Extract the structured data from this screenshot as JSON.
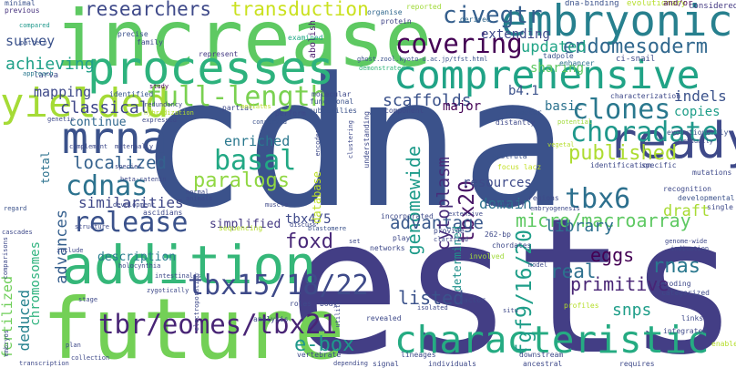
{
  "words": [
    {
      "text": "cdna",
      "color": "#3b528b"
    },
    {
      "text": "ests",
      "color": "#433e85"
    },
    {
      "text": "increase",
      "color": "#5ec962"
    },
    {
      "text": "future",
      "color": "#73d056"
    },
    {
      "text": "addition",
      "color": "#35b779"
    },
    {
      "text": "processes",
      "color": "#2db27d"
    },
    {
      "text": "comprehensive",
      "color": "#20a386"
    },
    {
      "text": "characteristic",
      "color": "#25ab82"
    },
    {
      "text": "embryonic",
      "color": "#27808e"
    },
    {
      "text": "ready",
      "color": "#3e4989"
    },
    {
      "text": "yielded",
      "color": "#a5db36"
    },
    {
      "text": "mrna",
      "color": "#3b528b"
    },
    {
      "text": "choradate",
      "color": "#1f988b"
    },
    {
      "text": "full-length",
      "color": "#7ad151"
    },
    {
      "text": "tbr/eomes/tbx21",
      "color": "#482475"
    },
    {
      "text": "tbx15/18/22",
      "color": "#3e4a89"
    },
    {
      "text": "basal",
      "color": "#22a884"
    },
    {
      "text": "cdnas",
      "color": "#2c728e"
    },
    {
      "text": "release",
      "color": "#3b528b"
    },
    {
      "text": "covering",
      "color": "#440154"
    },
    {
      "text": "clones",
      "color": "#2a788e"
    },
    {
      "text": "endomesoderm",
      "color": "#31688e"
    },
    {
      "text": "paralogs",
      "color": "#90d743"
    },
    {
      "text": "tbx6",
      "color": "#2d708e"
    },
    {
      "text": "tbx20",
      "color": "#471365"
    },
    {
      "text": "fgf9/16/20",
      "color": "#1f9e89"
    },
    {
      "text": "genomewide",
      "color": "#1e9b8a"
    },
    {
      "text": "micro/macroarray",
      "color": "#5ec962"
    },
    {
      "text": "civegtr",
      "color": "#355f8d"
    },
    {
      "text": "transduction",
      "color": "#cae11f"
    },
    {
      "text": "researchers",
      "color": "#3e4989"
    },
    {
      "text": "published",
      "color": "#addc30"
    },
    {
      "text": "updated",
      "color": "#20a486"
    },
    {
      "text": "advantage",
      "color": "#38588c"
    },
    {
      "text": "localized",
      "color": "#34618d"
    },
    {
      "text": "classical",
      "color": "#3f4788"
    },
    {
      "text": "cytoplasm",
      "color": "#472c7a"
    },
    {
      "text": "advances",
      "color": "#355f8d"
    },
    {
      "text": "similarities",
      "color": "#3f4788"
    },
    {
      "text": "achieving",
      "color": "#1fa088"
    },
    {
      "text": "mapping",
      "color": "#3e4989"
    },
    {
      "text": "enriched",
      "color": "#2a788e"
    },
    {
      "text": "scaffolds",
      "color": "#3b528b"
    },
    {
      "text": "rnas",
      "color": "#2a788e"
    },
    {
      "text": "e-box",
      "color": "#1f988b"
    },
    {
      "text": "foxd",
      "color": "#482878"
    },
    {
      "text": "listed",
      "color": "#3b528b"
    },
    {
      "text": "eggs",
      "color": "#440154"
    },
    {
      "text": "real",
      "color": "#2d708e"
    },
    {
      "text": "primitive",
      "color": "#482475"
    },
    {
      "text": "snps",
      "color": "#1f9e89"
    },
    {
      "text": "library",
      "color": "#2d708e"
    },
    {
      "text": "draft",
      "color": "#a8db34"
    },
    {
      "text": "domain",
      "color": "#2c728e"
    },
    {
      "text": "resources",
      "color": "#3e4a89"
    },
    {
      "text": "description",
      "color": "#287d8e"
    },
    {
      "text": "deduced",
      "color": "#26828e"
    },
    {
      "text": "fertilized",
      "color": "#6ece58"
    },
    {
      "text": "chromosomes",
      "color": "#2db27d"
    },
    {
      "text": "survey",
      "color": "#3b528b"
    },
    {
      "text": "b4.1",
      "color": "#3b528b"
    },
    {
      "text": "major",
      "color": "#440154"
    },
    {
      "text": "sharing",
      "color": "#5ec962"
    },
    {
      "text": "continue",
      "color": "#31688e"
    },
    {
      "text": "basic",
      "color": "#2c728e"
    },
    {
      "text": "indels",
      "color": "#3b528b"
    },
    {
      "text": "copies",
      "color": "#1f9e89"
    },
    {
      "text": "simplified",
      "color": "#443983"
    },
    {
      "text": "tbx4/5",
      "color": "#3e4989"
    },
    {
      "text": "extending",
      "color": "#3e4989"
    },
    {
      "text": "database",
      "color": "#bddf26"
    },
    {
      "text": "total",
      "color": "#2c728e"
    },
    {
      "text": "determined",
      "color": "#21918c"
    },
    {
      "text": "abolish",
      "color": "#481a6c"
    },
    {
      "text": "evolutionary",
      "color": "#b5de2b"
    },
    {
      "text": "considered",
      "color": "#443a83"
    },
    {
      "text": "dna-binding",
      "color": "#3b528b"
    },
    {
      "text": "organise",
      "color": "#31688e"
    },
    {
      "text": "protein",
      "color": "#404387"
    },
    {
      "text": "reported",
      "color": "#a0da39"
    },
    {
      "text": "derived",
      "color": "#31688e"
    },
    {
      "text": "examined",
      "color": "#22a884"
    },
    {
      "text": "precise",
      "color": "#3b528b"
    },
    {
      "text": "family",
      "color": "#3e4989"
    },
    {
      "text": "represent",
      "color": "#443983"
    },
    {
      "text": "compared",
      "color": "#1f988b"
    },
    {
      "text": "minimal",
      "color": "#3b528b"
    },
    {
      "text": "previous",
      "color": "#46327e"
    },
    {
      "text": "pattern",
      "color": "#3b528b"
    },
    {
      "text": "larva",
      "color": "#3e4989"
    },
    {
      "text": "approach",
      "color": "#2a788e"
    },
    {
      "text": "ghost.zool.kyoto-u.ac.jp/tfst.html",
      "color": "#3b528b"
    },
    {
      "text": "tadpole",
      "color": "#3b528b"
    },
    {
      "text": "enhancer",
      "color": "#2d708e"
    },
    {
      "text": "ci-snail",
      "color": "#3e4989"
    },
    {
      "text": "and/or",
      "color": "#440154"
    },
    {
      "text": "demonstrated",
      "color": "#32b67a"
    },
    {
      "text": "molecular",
      "color": "#3e4989"
    },
    {
      "text": "functional",
      "color": "#3b528b"
    },
    {
      "text": "subfamilies",
      "color": "#3b528b"
    },
    {
      "text": "partial",
      "color": "#3e4989"
    },
    {
      "text": "mediates",
      "color": "#b8de29"
    },
    {
      "text": "perform",
      "color": "#3e4989"
    },
    {
      "text": "component",
      "color": "#3e4989"
    },
    {
      "text": "identified",
      "color": "#38588c"
    },
    {
      "text": "redundancy",
      "color": "#3e4989"
    },
    {
      "text": "hybridization",
      "color": "#b5de2b"
    },
    {
      "text": "study",
      "color": "#440154"
    },
    {
      "text": "genetic",
      "color": "#3e4989"
    },
    {
      "text": "expressed",
      "color": "#3e4989"
    },
    {
      "text": "conserved",
      "color": "#3b528b"
    },
    {
      "text": "characterization",
      "color": "#3e4989"
    },
    {
      "text": "promoter",
      "color": "#3b528b"
    },
    {
      "text": "distantly",
      "color": "#3e4989"
    },
    {
      "text": "potential",
      "color": "#a0da39"
    },
    {
      "text": "vegetal",
      "color": "#b5de2b"
    },
    {
      "text": "gradually",
      "color": "#3e4989"
    },
    {
      "text": "evolutionarily",
      "color": "#3b528b"
    },
    {
      "text": "complement",
      "color": "#3e4989"
    },
    {
      "text": "maternally",
      "color": "#3e4989"
    },
    {
      "text": "encodes",
      "color": "#3e4989"
    },
    {
      "text": "clustering",
      "color": "#3e4989"
    },
    {
      "text": "understanding",
      "color": "#3e4989"
    },
    {
      "text": "gastrula",
      "color": "#3b528b"
    },
    {
      "text": "focus lacz",
      "color": "#c2df23"
    },
    {
      "text": "identification",
      "color": "#3e4989"
    },
    {
      "text": "specific",
      "color": "#3e4989"
    },
    {
      "text": "mutations",
      "color": "#3e4989"
    },
    {
      "text": "regard",
      "color": "#3b528b"
    },
    {
      "text": "species",
      "color": "#3e4989"
    },
    {
      "text": "beta-catenin",
      "color": "#3e4989"
    },
    {
      "text": "normal",
      "color": "#3e4989"
    },
    {
      "text": "animals",
      "color": "#3e4989"
    },
    {
      "text": "muscle",
      "color": "#3e4989"
    },
    {
      "text": "development",
      "color": "#3e4989"
    },
    {
      "text": "ascidians",
      "color": "#3e4989"
    },
    {
      "text": "discuss",
      "color": "#3e4989"
    },
    {
      "text": "blastomere",
      "color": "#3b528b"
    },
    {
      "text": "incorporated",
      "color": "#3e4989"
    },
    {
      "text": "extensive",
      "color": "#3e4989"
    },
    {
      "text": "brachyury",
      "color": "#3e4989"
    },
    {
      "text": "embryogenesis",
      "color": "#3e4989"
    },
    {
      "text": "regions",
      "color": "#3e4989"
    },
    {
      "text": "recognition",
      "color": "#3e4989"
    },
    {
      "text": "single",
      "color": "#3e4989"
    },
    {
      "text": "developmental",
      "color": "#3b528b"
    },
    {
      "text": "structure",
      "color": "#3e4989"
    },
    {
      "text": "sequencing",
      "color": "#b5de2b"
    },
    {
      "text": "cascades",
      "color": "#3e4989"
    },
    {
      "text": "comparisons",
      "color": "#3e4989"
    },
    {
      "text": "include",
      "color": "#3e4989"
    },
    {
      "text": "holocynthia",
      "color": "#3e4989"
    },
    {
      "text": "intestinalis",
      "color": "#3e4989"
    },
    {
      "text": "set",
      "color": "#3e4989"
    },
    {
      "text": "networks",
      "color": "#3e4989"
    },
    {
      "text": "play",
      "color": "#3e4989"
    },
    {
      "text": "provide",
      "color": "#3e4989"
    },
    {
      "text": "clarified",
      "color": "#3e4989"
    },
    {
      "text": "262-bp",
      "color": "#3e4989"
    },
    {
      "text": "chordates",
      "color": "#3e4989"
    },
    {
      "text": "involved",
      "color": "#a0da39"
    },
    {
      "text": "genome-wide",
      "color": "#3e4989"
    },
    {
      "text": "indication",
      "color": "#3e4989"
    },
    {
      "text": "model",
      "color": "#3e4989"
    },
    {
      "text": "decoding",
      "color": "#3e4989"
    },
    {
      "text": "categorized",
      "color": "#3e4989"
    },
    {
      "text": "integrated",
      "color": "#3e4989"
    },
    {
      "text": "enable",
      "color": "#b5de2b"
    },
    {
      "text": "factor",
      "color": "#3e4989"
    },
    {
      "text": "stage",
      "color": "#3e4989"
    },
    {
      "text": "zygotically",
      "color": "#3e4989"
    },
    {
      "text": "electroporation",
      "color": "#3e4989"
    },
    {
      "text": "roles",
      "color": "#3e4989"
    },
    {
      "text": "analysis",
      "color": "#3e4989"
    },
    {
      "text": "body",
      "color": "#3e4989"
    },
    {
      "text": "utility",
      "color": "#3e4989"
    },
    {
      "text": "revealed",
      "color": "#3e4989"
    },
    {
      "text": "isolated",
      "color": "#3e4989"
    },
    {
      "text": "situ",
      "color": "#3e4989"
    },
    {
      "text": "profiles",
      "color": "#b5de2b"
    },
    {
      "text": "collection",
      "color": "#3e4989"
    },
    {
      "text": "plan",
      "color": "#3e4989"
    },
    {
      "text": "vertebrate",
      "color": "#3e4989"
    },
    {
      "text": "lineages",
      "color": "#3e4989"
    },
    {
      "text": "downstream",
      "color": "#3e4989"
    },
    {
      "text": "embryos",
      "color": "#3e4989"
    },
    {
      "text": "transcription",
      "color": "#3e4989"
    },
    {
      "text": "depending",
      "color": "#3e4989"
    },
    {
      "text": "signal",
      "color": "#3e4989"
    },
    {
      "text": "individuals",
      "color": "#3e4989"
    },
    {
      "text": "ancestral",
      "color": "#3e4989"
    },
    {
      "text": "requires",
      "color": "#3e4989"
    },
    {
      "text": "links",
      "color": "#3e4989"
    }
  ]
}
